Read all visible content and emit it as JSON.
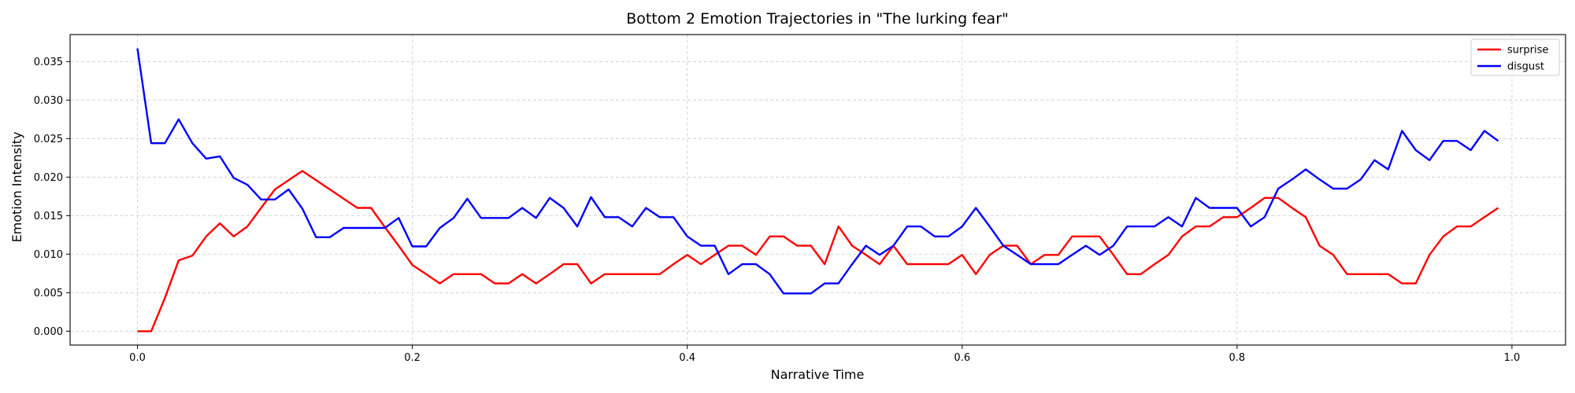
{
  "chart_data": {
    "type": "line",
    "title": "Bottom 2 Emotion Trajectories in \"The lurking fear\"",
    "xlabel": "Narrative Time",
    "ylabel": "Emotion Intensity",
    "xlim": [
      -0.049,
      1.039
    ],
    "ylim": [
      -0.0018,
      0.0385
    ],
    "xticks": [
      0.0,
      0.2,
      0.4,
      0.6,
      0.8,
      1.0
    ],
    "xtick_labels": [
      "0.0",
      "0.2",
      "0.4",
      "0.6",
      "0.8",
      "1.0"
    ],
    "yticks": [
      0.0,
      0.005,
      0.01,
      0.015,
      0.02,
      0.025,
      0.03,
      0.035
    ],
    "ytick_labels": [
      "0.000",
      "0.005",
      "0.010",
      "0.015",
      "0.020",
      "0.025",
      "0.030",
      "0.035"
    ],
    "grid": true,
    "legend_position": "top-right",
    "x": [
      0.0,
      0.01,
      0.02,
      0.03,
      0.04,
      0.05,
      0.06,
      0.07,
      0.08,
      0.09,
      0.1,
      0.11,
      0.12,
      0.13,
      0.14,
      0.15,
      0.16,
      0.17,
      0.18,
      0.19,
      0.2,
      0.21,
      0.22,
      0.23,
      0.24,
      0.25,
      0.26,
      0.27,
      0.28,
      0.29,
      0.3,
      0.31,
      0.32,
      0.33,
      0.34,
      0.35,
      0.36,
      0.37,
      0.38,
      0.39,
      0.4,
      0.41,
      0.42,
      0.43,
      0.44,
      0.45,
      0.46,
      0.47,
      0.48,
      0.49,
      0.5,
      0.51,
      0.52,
      0.53,
      0.54,
      0.55,
      0.56,
      0.57,
      0.58,
      0.59,
      0.6,
      0.61,
      0.62,
      0.63,
      0.64,
      0.65,
      0.66,
      0.67,
      0.68,
      0.69,
      0.7,
      0.71,
      0.72,
      0.73,
      0.74,
      0.75,
      0.76,
      0.77,
      0.78,
      0.79,
      0.8,
      0.81,
      0.82,
      0.83,
      0.84,
      0.85,
      0.86,
      0.87,
      0.88,
      0.89,
      0.9,
      0.91,
      0.92,
      0.93,
      0.94,
      0.95,
      0.96,
      0.97,
      0.98,
      0.99
    ],
    "series": [
      {
        "name": "surprise",
        "color": "#ff0000",
        "values": [
          0.0,
          0.0,
          0.0043,
          0.0092,
          0.0098,
          0.0123,
          0.014,
          0.0123,
          0.0136,
          0.016,
          0.0184,
          0.0196,
          0.0208,
          0.0196,
          0.0184,
          0.0172,
          0.016,
          0.016,
          0.0135,
          0.0111,
          0.0086,
          0.0074,
          0.0062,
          0.0074,
          0.0074,
          0.0074,
          0.0062,
          0.0062,
          0.0074,
          0.0062,
          0.0074,
          0.0087,
          0.0087,
          0.0062,
          0.0074,
          0.0074,
          0.0074,
          0.0074,
          0.0074,
          0.0087,
          0.0099,
          0.0087,
          0.0099,
          0.0111,
          0.0111,
          0.0099,
          0.0123,
          0.0123,
          0.0111,
          0.0111,
          0.0087,
          0.0136,
          0.0111,
          0.0099,
          0.0087,
          0.0111,
          0.0087,
          0.0087,
          0.0087,
          0.0087,
          0.0099,
          0.0074,
          0.0099,
          0.0111,
          0.0111,
          0.0087,
          0.0099,
          0.0099,
          0.0123,
          0.0123,
          0.0123,
          0.0099,
          0.0074,
          0.0074,
          0.0087,
          0.0099,
          0.0123,
          0.0136,
          0.0136,
          0.0148,
          0.0148,
          0.016,
          0.0173,
          0.0173,
          0.016,
          0.0148,
          0.0111,
          0.0099,
          0.0074,
          0.0074,
          0.0074,
          0.0074,
          0.0062,
          0.0062,
          0.0099,
          0.0123,
          0.0136,
          0.0136,
          0.0148,
          0.016
        ]
      },
      {
        "name": "disgust",
        "color": "#0000ff",
        "values": [
          0.0367,
          0.0244,
          0.0244,
          0.0275,
          0.0244,
          0.0224,
          0.0227,
          0.0199,
          0.019,
          0.0171,
          0.0171,
          0.0184,
          0.0159,
          0.0122,
          0.0122,
          0.0134,
          0.0134,
          0.0134,
          0.0134,
          0.0147,
          0.011,
          0.011,
          0.0134,
          0.0147,
          0.0172,
          0.0147,
          0.0147,
          0.0147,
          0.016,
          0.0147,
          0.0173,
          0.016,
          0.0136,
          0.0174,
          0.0148,
          0.0148,
          0.0136,
          0.016,
          0.0148,
          0.0148,
          0.0123,
          0.0111,
          0.0111,
          0.0074,
          0.0087,
          0.0087,
          0.0074,
          0.0049,
          0.0049,
          0.0049,
          0.0062,
          0.0062,
          0.0087,
          0.0111,
          0.0099,
          0.0111,
          0.0136,
          0.0136,
          0.0123,
          0.0123,
          0.0136,
          0.016,
          0.0136,
          0.0111,
          0.0099,
          0.0087,
          0.0087,
          0.0087,
          0.0099,
          0.0111,
          0.0099,
          0.0111,
          0.0136,
          0.0136,
          0.0136,
          0.0148,
          0.0136,
          0.0173,
          0.016,
          0.016,
          0.016,
          0.0136,
          0.0148,
          0.0185,
          0.0197,
          0.021,
          0.0197,
          0.0185,
          0.0185,
          0.0197,
          0.0222,
          0.021,
          0.026,
          0.0235,
          0.0222,
          0.0247,
          0.0247,
          0.0235,
          0.026,
          0.0247
        ]
      }
    ]
  }
}
